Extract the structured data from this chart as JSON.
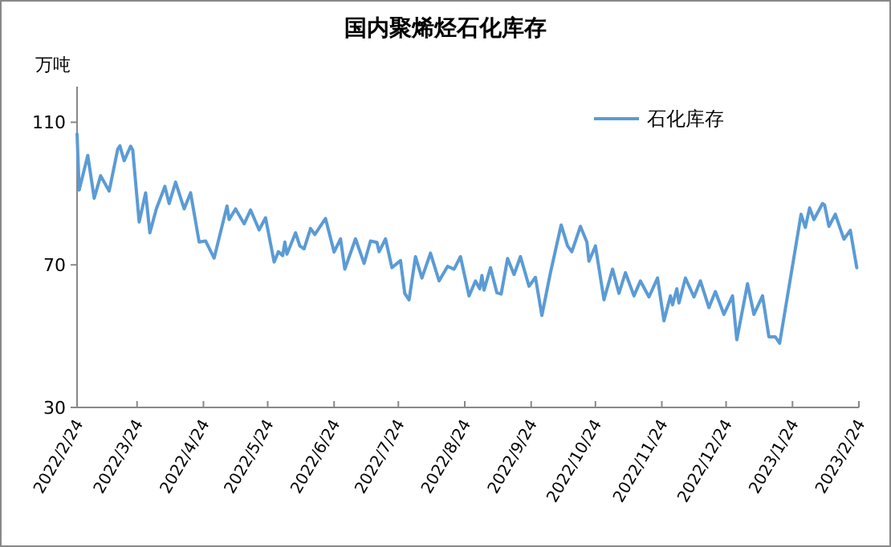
{
  "chart_data": {
    "type": "line",
    "title": "国内聚烯烃石化库存",
    "ylabel": "万吨",
    "x": [
      "2022-02-24",
      "2022-02-25",
      "2022-03-01",
      "2022-03-04",
      "2022-03-07",
      "2022-03-11",
      "2022-03-15",
      "2022-03-16",
      "2022-03-18",
      "2022-03-21",
      "2022-03-22",
      "2022-03-25",
      "2022-03-28",
      "2022-03-30",
      "2022-04-02",
      "2022-04-06",
      "2022-04-08",
      "2022-04-11",
      "2022-04-15",
      "2022-04-18",
      "2022-04-22",
      "2022-04-25",
      "2022-04-29",
      "2022-05-05",
      "2022-05-06",
      "2022-05-09",
      "2022-05-13",
      "2022-05-16",
      "2022-05-20",
      "2022-05-23",
      "2022-05-27",
      "2022-05-29",
      "2022-05-31",
      "2022-06-01",
      "2022-06-02",
      "2022-06-06",
      "2022-06-08",
      "2022-06-10",
      "2022-06-13",
      "2022-06-15",
      "2022-06-20",
      "2022-06-24",
      "2022-06-27",
      "2022-06-29",
      "2022-07-04",
      "2022-07-08",
      "2022-07-11",
      "2022-07-14",
      "2022-07-15",
      "2022-07-18",
      "2022-07-21",
      "2022-07-25",
      "2022-07-27",
      "2022-07-29",
      "2022-08-01",
      "2022-08-04",
      "2022-08-08",
      "2022-08-12",
      "2022-08-16",
      "2022-08-19",
      "2022-08-22",
      "2022-08-26",
      "2022-08-29",
      "2022-08-31",
      "2022-09-01",
      "2022-09-02",
      "2022-09-05",
      "2022-09-08",
      "2022-09-10",
      "2022-09-13",
      "2022-09-16",
      "2022-09-19",
      "2022-09-23",
      "2022-09-26",
      "2022-09-29",
      "2022-10-03",
      "2022-10-08",
      "2022-10-11",
      "2022-10-13",
      "2022-10-17",
      "2022-10-20",
      "2022-10-21",
      "2022-10-24",
      "2022-10-28",
      "2022-11-01",
      "2022-11-04",
      "2022-11-07",
      "2022-11-11",
      "2022-11-14",
      "2022-11-18",
      "2022-11-22",
      "2022-11-25",
      "2022-11-28",
      "2022-11-29",
      "2022-12-01",
      "2022-12-02",
      "2022-12-05",
      "2022-12-09",
      "2022-12-12",
      "2022-12-16",
      "2022-12-19",
      "2022-12-23",
      "2022-12-27",
      "2022-12-29",
      "2023-01-03",
      "2023-01-06",
      "2023-01-10",
      "2023-01-13",
      "2023-01-16",
      "2023-01-18",
      "2023-01-28",
      "2023-01-30",
      "2023-02-01",
      "2023-02-03",
      "2023-02-07",
      "2023-02-08",
      "2023-02-10",
      "2023-02-13",
      "2023-02-17",
      "2023-02-20",
      "2023-02-23"
    ],
    "series": [
      {
        "name": "石化库存",
        "color": "#5b9bd5",
        "values": [
          106.7,
          91.0,
          100.7,
          88.7,
          95.0,
          90.7,
          102.5,
          103.4,
          99.2,
          103.3,
          102.2,
          82.0,
          90.2,
          79.0,
          85.7,
          92.0,
          87.2,
          93.2,
          85.7,
          90.2,
          76.4,
          76.7,
          71.9,
          86.5,
          82.7,
          85.7,
          81.5,
          85.4,
          79.8,
          83.2,
          70.8,
          73.7,
          72.6,
          76.4,
          73.0,
          79.0,
          75.3,
          74.5,
          80.2,
          78.5,
          83.0,
          73.6,
          77.3,
          68.8,
          77.3,
          70.4,
          76.7,
          76.3,
          73.7,
          77.3,
          69.2,
          71.2,
          62.0,
          60.2,
          72.3,
          66.3,
          73.3,
          65.5,
          69.6,
          68.8,
          72.3,
          61.3,
          65.5,
          63.3,
          67.0,
          62.9,
          69.2,
          62.2,
          61.8,
          71.8,
          67.3,
          72.3,
          64.0,
          66.5,
          55.8,
          67.8,
          81.2,
          75.3,
          73.7,
          80.8,
          76.4,
          71.0,
          75.3,
          60.2,
          68.8,
          62.0,
          67.8,
          61.3,
          65.5,
          61.0,
          66.3,
          54.3,
          61.3,
          58.8,
          63.3,
          59.3,
          66.3,
          61.0,
          65.5,
          58.0,
          62.5,
          56.1,
          61.3,
          49.0,
          64.7,
          56.1,
          61.3,
          49.8,
          49.8,
          48.0,
          84.2,
          80.5,
          86.0,
          82.7,
          87.2,
          86.8,
          80.8,
          84.2,
          77.2,
          79.7,
          69.2
        ]
      }
    ],
    "xlim": [
      "2022-02-24",
      "2023-02-24"
    ],
    "xticks": [
      {
        "value": "2022-02-24",
        "label": "2022/2/24"
      },
      {
        "value": "2022-03-24",
        "label": "2022/3/24"
      },
      {
        "value": "2022-04-24",
        "label": "2022/4/24"
      },
      {
        "value": "2022-05-24",
        "label": "2022/5/24"
      },
      {
        "value": "2022-06-24",
        "label": "2022/6/24"
      },
      {
        "value": "2022-07-24",
        "label": "2022/7/24"
      },
      {
        "value": "2022-08-24",
        "label": "2022/8/24"
      },
      {
        "value": "2022-09-24",
        "label": "2022/9/24"
      },
      {
        "value": "2022-10-24",
        "label": "2022/10/24"
      },
      {
        "value": "2022-11-24",
        "label": "2022/11/24"
      },
      {
        "value": "2022-12-24",
        "label": "2022/12/24"
      },
      {
        "value": "2023-01-24",
        "label": "2023/1/24"
      },
      {
        "value": "2023-02-24",
        "label": "2023/2/24"
      }
    ],
    "ylim": [
      30,
      120
    ],
    "yticks": [
      30,
      70,
      110
    ],
    "grid": false,
    "legend": "top right",
    "marker": "none",
    "line_style": "solid"
  }
}
